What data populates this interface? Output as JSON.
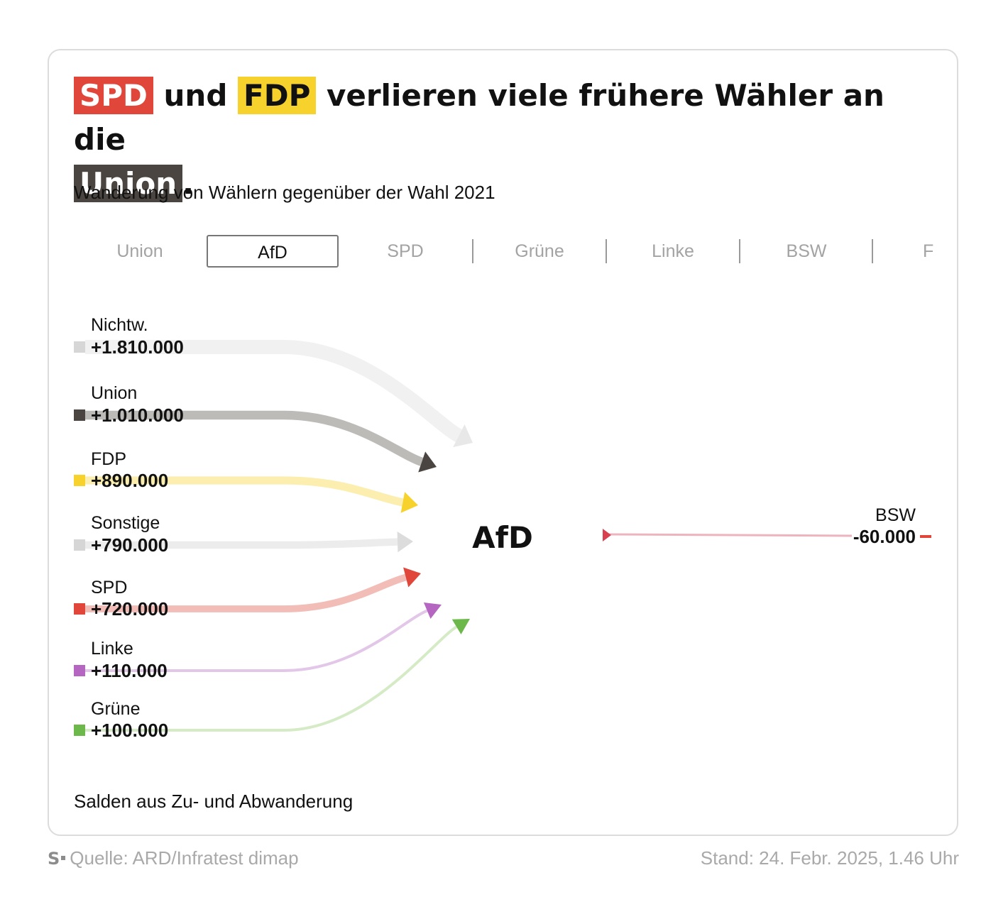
{
  "title": {
    "spd": "SPD",
    "und": " und ",
    "fdp": "FDP",
    "rest": " verlieren viele frühere Wähler an die",
    "union": "Union",
    "dot": "."
  },
  "subtitle": "Wanderung von Wählern gegenüber der Wahl 2021",
  "tabs": [
    {
      "label": "Union",
      "active": false
    },
    {
      "label": "AfD",
      "active": true
    },
    {
      "label": "SPD",
      "active": false
    },
    {
      "label": "Grüne",
      "active": false
    },
    {
      "label": "Linke",
      "active": false
    },
    {
      "label": "BSW",
      "active": false
    },
    {
      "label": "F",
      "active": false
    }
  ],
  "chart_data": {
    "type": "flow",
    "center": "AfD",
    "inflows": [
      {
        "name": "Nichtw.",
        "label": "+1.810.000",
        "value": 1810000,
        "color": "#d6d6d6",
        "line": "#f1f1f1",
        "arrow": "#e8e8e8"
      },
      {
        "name": "Union",
        "label": "+1.010.000",
        "value": 1010000,
        "color": "#4a4540",
        "line": "#bdbbb8",
        "arrow": "#4a4540"
      },
      {
        "name": "FDP",
        "label": "+890.000",
        "value": 890000,
        "color": "#f8d22c",
        "line": "#fbeeae",
        "arrow": "#f8d22c"
      },
      {
        "name": "Sonstige",
        "label": "+790.000",
        "value": 790000,
        "color": "#d6d6d6",
        "line": "#ececec",
        "arrow": "#dcdcdc"
      },
      {
        "name": "SPD",
        "label": "+720.000",
        "value": 720000,
        "color": "#e0473a",
        "line": "#f2bcb7",
        "arrow": "#e0473a"
      },
      {
        "name": "Linke",
        "label": "+110.000",
        "value": 110000,
        "color": "#b466c0",
        "line": "#e3c7e8",
        "arrow": "#b466c0"
      },
      {
        "name": "Grüne",
        "label": "+100.000",
        "value": 100000,
        "color": "#6cb84a",
        "line": "#d4ebc6",
        "arrow": "#6cb84a"
      }
    ],
    "outflows": [
      {
        "name": "BSW",
        "label": "-60.000",
        "value": -60000,
        "color": "#e0473a",
        "line": "#eeb4be",
        "arrow": "#d8404f"
      }
    ]
  },
  "footnote": "Salden aus Zu- und Abwanderung",
  "source": {
    "logo": "S",
    "text": "Quelle: ARD/Infratest dimap"
  },
  "stand": "Stand: 24. Febr. 2025, 1.46 Uhr"
}
